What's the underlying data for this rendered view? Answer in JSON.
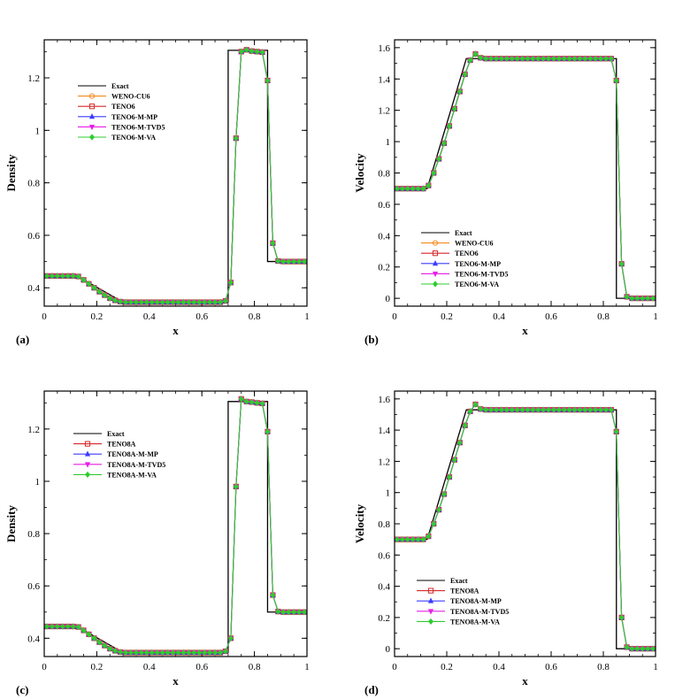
{
  "markers": {
    "WENO-CU6": {
      "color": "#f58a1f",
      "shape": "circle-open"
    },
    "TENO6": {
      "color": "#d62728",
      "shape": "square-open"
    },
    "TENO6-M-MP": {
      "color": "#3b3bff",
      "shape": "triangle-up"
    },
    "TENO6-M-TVD5": {
      "color": "#e61ee6",
      "shape": "triangle-down"
    },
    "TENO6-M-VA": {
      "color": "#2ecc2e",
      "shape": "diamond"
    },
    "TENO8A": {
      "color": "#d62728",
      "shape": "square-open"
    },
    "TENO8A-M-MP": {
      "color": "#3b3bff",
      "shape": "triangle-up"
    },
    "TENO8A-M-TVD5": {
      "color": "#e61ee6",
      "shape": "triangle-down"
    },
    "TENO8A-M-VA": {
      "color": "#2ecc2e",
      "shape": "diamond"
    },
    "Exact": {
      "color": "#000000",
      "shape": "none"
    }
  },
  "chart_data": [
    {
      "type": "line",
      "panel_label": "(a)",
      "xlabel": "x",
      "ylabel": "Density",
      "xlim": [
        0,
        1
      ],
      "ylim": [
        0.33,
        1.345
      ],
      "xticks": [
        0,
        0.2,
        0.4,
        0.6,
        0.8,
        1
      ],
      "xtick_labels": [
        "0",
        "0.2",
        "0.4",
        "0.6",
        "0.8",
        "1"
      ],
      "yticks": [
        0.4,
        0.6,
        0.8,
        1,
        1.2
      ],
      "ytick_labels": [
        "0.4",
        "0.6",
        "0.8",
        "1",
        "1.2"
      ],
      "legend_position": "upper-left",
      "legend": [
        "Exact",
        "WENO-CU6",
        "TENO6",
        "TENO6-M-MP",
        "TENO6-M-TVD5",
        "TENO6-M-VA"
      ],
      "exact": {
        "x": [
          0,
          0.125,
          0.3,
          0.7,
          0.7,
          0.75,
          0.75,
          0.85,
          0.85,
          1
        ],
        "y": [
          0.445,
          0.445,
          0.345,
          0.345,
          1.305,
          1.305,
          1.305,
          1.305,
          0.5,
          0.5
        ]
      },
      "numerical": {
        "x": [
          0.01,
          0.03,
          0.05,
          0.07,
          0.09,
          0.11,
          0.13,
          0.15,
          0.17,
          0.19,
          0.21,
          0.23,
          0.25,
          0.27,
          0.29,
          0.31,
          0.33,
          0.35,
          0.37,
          0.39,
          0.41,
          0.43,
          0.45,
          0.47,
          0.49,
          0.51,
          0.53,
          0.55,
          0.57,
          0.59,
          0.61,
          0.63,
          0.65,
          0.67,
          0.69,
          0.71,
          0.73,
          0.75,
          0.77,
          0.79,
          0.81,
          0.83,
          0.85,
          0.87,
          0.89,
          0.91,
          0.93,
          0.95,
          0.97,
          0.99
        ],
        "y": [
          0.445,
          0.445,
          0.445,
          0.445,
          0.445,
          0.445,
          0.443,
          0.43,
          0.415,
          0.4,
          0.385,
          0.372,
          0.36,
          0.352,
          0.347,
          0.345,
          0.345,
          0.345,
          0.345,
          0.345,
          0.345,
          0.345,
          0.345,
          0.345,
          0.345,
          0.345,
          0.345,
          0.345,
          0.345,
          0.345,
          0.345,
          0.345,
          0.345,
          0.345,
          0.35,
          0.42,
          0.97,
          1.3,
          1.307,
          1.302,
          1.3,
          1.298,
          1.19,
          0.57,
          0.502,
          0.5,
          0.5,
          0.5,
          0.5,
          0.5
        ]
      }
    },
    {
      "type": "line",
      "panel_label": "(b)",
      "xlabel": "x",
      "ylabel": "Velocity",
      "xlim": [
        0,
        1
      ],
      "ylim": [
        -0.05,
        1.65
      ],
      "xticks": [
        0,
        0.2,
        0.4,
        0.6,
        0.8,
        1
      ],
      "xtick_labels": [
        "0",
        "0.2",
        "0.4",
        "0.6",
        "0.8",
        "1"
      ],
      "yticks": [
        0,
        0.2,
        0.4,
        0.6,
        0.8,
        1,
        1.2,
        1.4,
        1.6
      ],
      "ytick_labels": [
        "0",
        "0.2",
        "0.4",
        "0.6",
        "0.8",
        "1",
        "1.2",
        "1.4",
        "1.6"
      ],
      "legend_position": "lower-left",
      "legend": [
        "Exact",
        "WENO-CU6",
        "TENO6",
        "TENO6-M-MP",
        "TENO6-M-TVD5",
        "TENO6-M-VA"
      ],
      "exact": {
        "x": [
          0,
          0.125,
          0.275,
          0.85,
          0.85,
          1
        ],
        "y": [
          0.7,
          0.7,
          1.53,
          1.53,
          0.0,
          0.0
        ]
      },
      "numerical": {
        "x": [
          0.01,
          0.03,
          0.05,
          0.07,
          0.09,
          0.11,
          0.13,
          0.15,
          0.17,
          0.19,
          0.21,
          0.23,
          0.25,
          0.27,
          0.29,
          0.31,
          0.33,
          0.35,
          0.37,
          0.39,
          0.41,
          0.43,
          0.45,
          0.47,
          0.49,
          0.51,
          0.53,
          0.55,
          0.57,
          0.59,
          0.61,
          0.63,
          0.65,
          0.67,
          0.69,
          0.71,
          0.73,
          0.75,
          0.77,
          0.79,
          0.81,
          0.83,
          0.85,
          0.87,
          0.89,
          0.91,
          0.93,
          0.95,
          0.97,
          0.99
        ],
        "y": [
          0.7,
          0.7,
          0.7,
          0.7,
          0.7,
          0.7,
          0.72,
          0.8,
          0.89,
          0.99,
          1.1,
          1.21,
          1.32,
          1.43,
          1.52,
          1.56,
          1.535,
          1.53,
          1.53,
          1.53,
          1.53,
          1.53,
          1.53,
          1.53,
          1.53,
          1.53,
          1.53,
          1.53,
          1.53,
          1.53,
          1.53,
          1.53,
          1.53,
          1.53,
          1.53,
          1.53,
          1.53,
          1.53,
          1.53,
          1.53,
          1.53,
          1.53,
          1.39,
          0.22,
          0.01,
          0.0,
          0.0,
          0.0,
          0.0,
          0.0
        ]
      }
    },
    {
      "type": "line",
      "panel_label": "(c)",
      "xlabel": "x",
      "ylabel": "Density",
      "xlim": [
        0,
        1
      ],
      "ylim": [
        0.33,
        1.345
      ],
      "xticks": [
        0,
        0.2,
        0.4,
        0.6,
        0.8,
        1
      ],
      "xtick_labels": [
        "0",
        "0.2",
        "0.4",
        "0.6",
        "0.8",
        "1"
      ],
      "yticks": [
        0.4,
        0.6,
        0.8,
        1,
        1.2
      ],
      "ytick_labels": [
        "0.4",
        "0.6",
        "0.8",
        "1",
        "1.2"
      ],
      "legend_position": "upper-left",
      "legend": [
        "Exact",
        "TENO8A",
        "TENO8A-M-MP",
        "TENO8A-M-TVD5",
        "TENO8A-M-VA"
      ],
      "exact": {
        "x": [
          0,
          0.125,
          0.3,
          0.7,
          0.7,
          0.75,
          0.75,
          0.85,
          0.85,
          1
        ],
        "y": [
          0.445,
          0.445,
          0.345,
          0.345,
          1.305,
          1.305,
          1.305,
          1.305,
          0.5,
          0.5
        ]
      },
      "numerical": {
        "x": [
          0.01,
          0.03,
          0.05,
          0.07,
          0.09,
          0.11,
          0.13,
          0.15,
          0.17,
          0.19,
          0.21,
          0.23,
          0.25,
          0.27,
          0.29,
          0.31,
          0.33,
          0.35,
          0.37,
          0.39,
          0.41,
          0.43,
          0.45,
          0.47,
          0.49,
          0.51,
          0.53,
          0.55,
          0.57,
          0.59,
          0.61,
          0.63,
          0.65,
          0.67,
          0.69,
          0.71,
          0.73,
          0.75,
          0.77,
          0.79,
          0.81,
          0.83,
          0.85,
          0.87,
          0.89,
          0.91,
          0.93,
          0.95,
          0.97,
          0.99
        ],
        "y": [
          0.445,
          0.445,
          0.445,
          0.445,
          0.445,
          0.445,
          0.443,
          0.43,
          0.415,
          0.4,
          0.385,
          0.372,
          0.36,
          0.352,
          0.347,
          0.345,
          0.345,
          0.345,
          0.345,
          0.345,
          0.345,
          0.345,
          0.345,
          0.345,
          0.345,
          0.345,
          0.345,
          0.345,
          0.345,
          0.345,
          0.345,
          0.345,
          0.345,
          0.345,
          0.35,
          0.4,
          0.98,
          1.315,
          1.305,
          1.303,
          1.3,
          1.298,
          1.19,
          0.565,
          0.502,
          0.5,
          0.5,
          0.5,
          0.5,
          0.5
        ]
      }
    },
    {
      "type": "line",
      "panel_label": "(d)",
      "xlabel": "x",
      "ylabel": "Velocity",
      "xlim": [
        0,
        1
      ],
      "ylim": [
        -0.05,
        1.65
      ],
      "xticks": [
        0,
        0.2,
        0.4,
        0.6,
        0.8,
        1
      ],
      "xtick_labels": [
        "0",
        "0.2",
        "0.4",
        "0.6",
        "0.8",
        "1"
      ],
      "yticks": [
        0,
        0.2,
        0.4,
        0.6,
        0.8,
        1,
        1.2,
        1.4,
        1.6
      ],
      "ytick_labels": [
        "0",
        "0.2",
        "0.4",
        "0.6",
        "0.8",
        "1",
        "1.2",
        "1.4",
        "1.6"
      ],
      "legend_position": "lower-left",
      "legend": [
        "Exact",
        "TENO8A",
        "TENO8A-M-MP",
        "TENO8A-M-TVD5",
        "TENO8A-M-VA"
      ],
      "exact": {
        "x": [
          0,
          0.125,
          0.275,
          0.85,
          0.85,
          1
        ],
        "y": [
          0.7,
          0.7,
          1.53,
          1.53,
          0.0,
          0.0
        ]
      },
      "numerical": {
        "x": [
          0.01,
          0.03,
          0.05,
          0.07,
          0.09,
          0.11,
          0.13,
          0.15,
          0.17,
          0.19,
          0.21,
          0.23,
          0.25,
          0.27,
          0.29,
          0.31,
          0.33,
          0.35,
          0.37,
          0.39,
          0.41,
          0.43,
          0.45,
          0.47,
          0.49,
          0.51,
          0.53,
          0.55,
          0.57,
          0.59,
          0.61,
          0.63,
          0.65,
          0.67,
          0.69,
          0.71,
          0.73,
          0.75,
          0.77,
          0.79,
          0.81,
          0.83,
          0.85,
          0.87,
          0.89,
          0.91,
          0.93,
          0.95,
          0.97,
          0.99
        ],
        "y": [
          0.7,
          0.7,
          0.7,
          0.7,
          0.7,
          0.7,
          0.72,
          0.8,
          0.89,
          0.99,
          1.1,
          1.21,
          1.32,
          1.43,
          1.52,
          1.565,
          1.535,
          1.53,
          1.53,
          1.53,
          1.53,
          1.53,
          1.53,
          1.53,
          1.53,
          1.53,
          1.53,
          1.53,
          1.53,
          1.53,
          1.53,
          1.53,
          1.53,
          1.53,
          1.53,
          1.53,
          1.53,
          1.53,
          1.53,
          1.53,
          1.53,
          1.53,
          1.39,
          0.2,
          0.01,
          0.0,
          0.0,
          0.0,
          0.0,
          0.0
        ]
      }
    }
  ]
}
